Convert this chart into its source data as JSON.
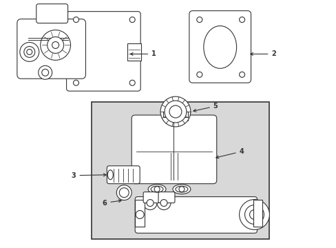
{
  "bg_color": "#ffffff",
  "box_bg": "#d8d8d8",
  "line_color": "#333333",
  "lw": 0.8,
  "figsize": [
    4.89,
    3.6
  ],
  "dpi": 100,
  "xlim": [
    0,
    489
  ],
  "ylim": [
    0,
    360
  ]
}
